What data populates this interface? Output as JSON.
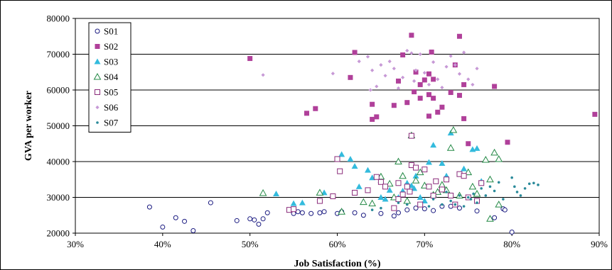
{
  "chart_data": {
    "type": "scatter",
    "title": "",
    "xlabel": "Job Satisfaction (%)",
    "ylabel": "GVA per worker",
    "xlim": [
      30,
      90
    ],
    "ylim": [
      20000,
      80000
    ],
    "x_ticks": [
      "30%",
      "40%",
      "50%",
      "60%",
      "70%",
      "80%",
      "90%"
    ],
    "y_ticks": [
      "20000",
      "30000",
      "40000",
      "50000",
      "60000",
      "70000",
      "80000"
    ],
    "grid": "horizontal",
    "legend_position": "top-left",
    "series": [
      {
        "name": "S01",
        "marker": "circle-open",
        "color": "#1a1a80",
        "points": [
          [
            38.5,
            27300
          ],
          [
            40,
            21700
          ],
          [
            41.5,
            24300
          ],
          [
            42.5,
            23300
          ],
          [
            43.5,
            20700
          ],
          [
            45.5,
            28500
          ],
          [
            48.5,
            23500
          ],
          [
            50,
            24000
          ],
          [
            50.5,
            23700
          ],
          [
            51,
            22500
          ],
          [
            51.5,
            24000
          ],
          [
            52,
            25700
          ],
          [
            54.5,
            26500
          ],
          [
            55,
            25500
          ],
          [
            55.5,
            26000
          ],
          [
            56,
            25700
          ],
          [
            57,
            25500
          ],
          [
            58,
            25700
          ],
          [
            58.5,
            26000
          ],
          [
            60,
            25500
          ],
          [
            60.5,
            26000
          ],
          [
            62,
            25700
          ],
          [
            63,
            25000
          ],
          [
            65,
            25500
          ],
          [
            66.5,
            24800
          ],
          [
            67,
            25700
          ],
          [
            68,
            26500
          ],
          [
            69,
            27000
          ],
          [
            70,
            26800
          ],
          [
            71,
            26300
          ],
          [
            72,
            27500
          ],
          [
            73,
            27500
          ],
          [
            74,
            27000
          ],
          [
            76,
            26200
          ],
          [
            78,
            24300
          ],
          [
            79,
            26800
          ],
          [
            79.2,
            26500
          ],
          [
            80,
            20300
          ]
        ]
      },
      {
        "name": "S02",
        "marker": "square-filled",
        "color": "#b0409a",
        "points": [
          [
            50,
            68800
          ],
          [
            56.5,
            53500
          ],
          [
            57.5,
            54800
          ],
          [
            61.5,
            63500
          ],
          [
            62,
            70500
          ],
          [
            64,
            51800
          ],
          [
            64.5,
            52500
          ],
          [
            64,
            56000
          ],
          [
            66.5,
            55700
          ],
          [
            67,
            62500
          ],
          [
            67.5,
            69800
          ],
          [
            68,
            56500
          ],
          [
            68.5,
            75300
          ],
          [
            68.8,
            59500
          ],
          [
            69,
            65000
          ],
          [
            69.5,
            61500
          ],
          [
            69.5,
            57700
          ],
          [
            70,
            62800
          ],
          [
            70.5,
            58700
          ],
          [
            70.5,
            52700
          ],
          [
            70.5,
            64500
          ],
          [
            70.8,
            70600
          ],
          [
            71,
            63000
          ],
          [
            71.5,
            53800
          ],
          [
            71,
            57700
          ],
          [
            72,
            55200
          ],
          [
            73,
            59300
          ],
          [
            73.5,
            67000
          ],
          [
            74,
            58500
          ],
          [
            74,
            75000
          ],
          [
            74.5,
            61500
          ],
          [
            75,
            45000
          ],
          [
            74.5,
            52000
          ],
          [
            78,
            61000
          ],
          [
            79.5,
            45400
          ],
          [
            89.5,
            53200
          ]
        ]
      },
      {
        "name": "S03",
        "marker": "triangle-filled",
        "color": "#33bbdd",
        "points": [
          [
            53,
            31000
          ],
          [
            55,
            28300
          ],
          [
            56,
            28500
          ],
          [
            58.5,
            31300
          ],
          [
            60.5,
            42000
          ],
          [
            61.5,
            40700
          ],
          [
            62,
            38700
          ],
          [
            62.5,
            33000
          ],
          [
            63.5,
            37600
          ],
          [
            64,
            35500
          ],
          [
            65,
            34800
          ],
          [
            65,
            30000
          ],
          [
            65.5,
            29500
          ],
          [
            66,
            32000
          ],
          [
            67,
            30000
          ],
          [
            67.5,
            31800
          ],
          [
            68,
            34000
          ],
          [
            68.5,
            33300
          ],
          [
            68.8,
            32500
          ],
          [
            69,
            36000
          ],
          [
            69.5,
            30000
          ],
          [
            70.5,
            39800
          ],
          [
            71,
            44600
          ],
          [
            72,
            39500
          ],
          [
            72.5,
            36000
          ],
          [
            73,
            48000
          ],
          [
            74.5,
            38000
          ],
          [
            75.5,
            43400
          ],
          [
            76,
            43700
          ],
          [
            76.5,
            34500
          ],
          [
            70,
            29000
          ]
        ]
      },
      {
        "name": "S04",
        "marker": "triangle-open",
        "color": "#228844",
        "points": [
          [
            51.5,
            31200
          ],
          [
            58,
            31300
          ],
          [
            60.5,
            26000
          ],
          [
            63,
            28700
          ],
          [
            64,
            28300
          ],
          [
            65,
            35800
          ],
          [
            66,
            33800
          ],
          [
            66.5,
            30000
          ],
          [
            67,
            40000
          ],
          [
            67.5,
            36000
          ],
          [
            68,
            29000
          ],
          [
            68.5,
            47300
          ],
          [
            69,
            34700
          ],
          [
            69.5,
            37000
          ],
          [
            70,
            33300
          ],
          [
            71,
            30700
          ],
          [
            71.5,
            31500
          ],
          [
            72,
            33500
          ],
          [
            72.5,
            32000
          ],
          [
            73,
            43800
          ],
          [
            73.3,
            48800
          ],
          [
            74,
            30500
          ],
          [
            75,
            37000
          ],
          [
            75.5,
            33000
          ],
          [
            76,
            31000
          ],
          [
            77,
            40500
          ],
          [
            77.5,
            35000
          ],
          [
            78,
            42500
          ],
          [
            78.5,
            28000
          ],
          [
            77.5,
            24000
          ],
          [
            78.5,
            40700
          ]
        ]
      },
      {
        "name": "S05",
        "marker": "square-open",
        "color": "#8a2b7a",
        "points": [
          [
            54.5,
            26500
          ],
          [
            55,
            26700
          ],
          [
            58,
            29000
          ],
          [
            59.5,
            30300
          ],
          [
            60,
            40700
          ],
          [
            60.3,
            37300
          ],
          [
            62,
            31300
          ],
          [
            63.5,
            32000
          ],
          [
            64.5,
            35700
          ],
          [
            65,
            34300
          ],
          [
            65.5,
            33000
          ],
          [
            66.5,
            27000
          ],
          [
            67,
            29500
          ],
          [
            67.5,
            30800
          ],
          [
            67,
            34000
          ],
          [
            68,
            33000
          ],
          [
            68.3,
            31600
          ],
          [
            68.5,
            39000
          ],
          [
            69,
            38300
          ],
          [
            69.5,
            28000
          ],
          [
            70,
            37800
          ],
          [
            70.5,
            33000
          ],
          [
            71,
            30500
          ],
          [
            71.3,
            34500
          ],
          [
            72,
            32200
          ],
          [
            72.5,
            35000
          ],
          [
            73,
            30500
          ],
          [
            73.5,
            28000
          ],
          [
            74,
            36500
          ],
          [
            74.5,
            36000
          ],
          [
            75,
            30000
          ],
          [
            76.5,
            34000
          ],
          [
            76,
            29000
          ],
          [
            68.5,
            47200
          ]
        ]
      },
      {
        "name": "S06",
        "marker": "diamond-filled",
        "color": "#c799d6",
        "points": [
          [
            51.5,
            64200
          ],
          [
            59.5,
            64600
          ],
          [
            62.5,
            68000
          ],
          [
            63.5,
            69300
          ],
          [
            63.8,
            60000
          ],
          [
            64,
            65500
          ],
          [
            64.5,
            61000
          ],
          [
            65,
            67000
          ],
          [
            65.5,
            64000
          ],
          [
            66,
            68000
          ],
          [
            66.5,
            66000
          ],
          [
            67,
            60500
          ],
          [
            67.5,
            63500
          ],
          [
            68,
            71000
          ],
          [
            68.5,
            70300
          ],
          [
            68.8,
            62500
          ],
          [
            69,
            65500
          ],
          [
            69.5,
            70000
          ],
          [
            70,
            64800
          ],
          [
            70.5,
            61500
          ],
          [
            71,
            67800
          ],
          [
            71.5,
            63000
          ],
          [
            72,
            60700
          ],
          [
            72.5,
            66500
          ],
          [
            73,
            69500
          ],
          [
            73.5,
            67000
          ],
          [
            74,
            64500
          ],
          [
            74.5,
            70500
          ],
          [
            75,
            63000
          ],
          [
            75.5,
            61500
          ],
          [
            76,
            66000
          ]
        ]
      },
      {
        "name": "S07",
        "marker": "circle-filled-small",
        "color": "#2a8a9a",
        "points": [
          [
            64,
            26500
          ],
          [
            65,
            27000
          ],
          [
            67,
            28500
          ],
          [
            68,
            28000
          ],
          [
            70.5,
            27500
          ],
          [
            71,
            29500
          ],
          [
            72,
            28000
          ],
          [
            72.5,
            31500
          ],
          [
            73,
            29000
          ],
          [
            73.5,
            28000
          ],
          [
            74,
            30500
          ],
          [
            74.5,
            27500
          ],
          [
            75,
            30000
          ],
          [
            75.3,
            29500
          ],
          [
            75.6,
            31000
          ],
          [
            76,
            28500
          ],
          [
            76.5,
            32500
          ],
          [
            77,
            30500
          ],
          [
            77.5,
            33000
          ],
          [
            78,
            31800
          ],
          [
            78.5,
            34200
          ],
          [
            79,
            29500
          ],
          [
            80,
            35500
          ],
          [
            80.3,
            33000
          ],
          [
            80.6,
            31500
          ],
          [
            81,
            30500
          ],
          [
            81.5,
            32500
          ],
          [
            82,
            33800
          ],
          [
            82.5,
            34000
          ],
          [
            83,
            33500
          ]
        ]
      }
    ]
  }
}
